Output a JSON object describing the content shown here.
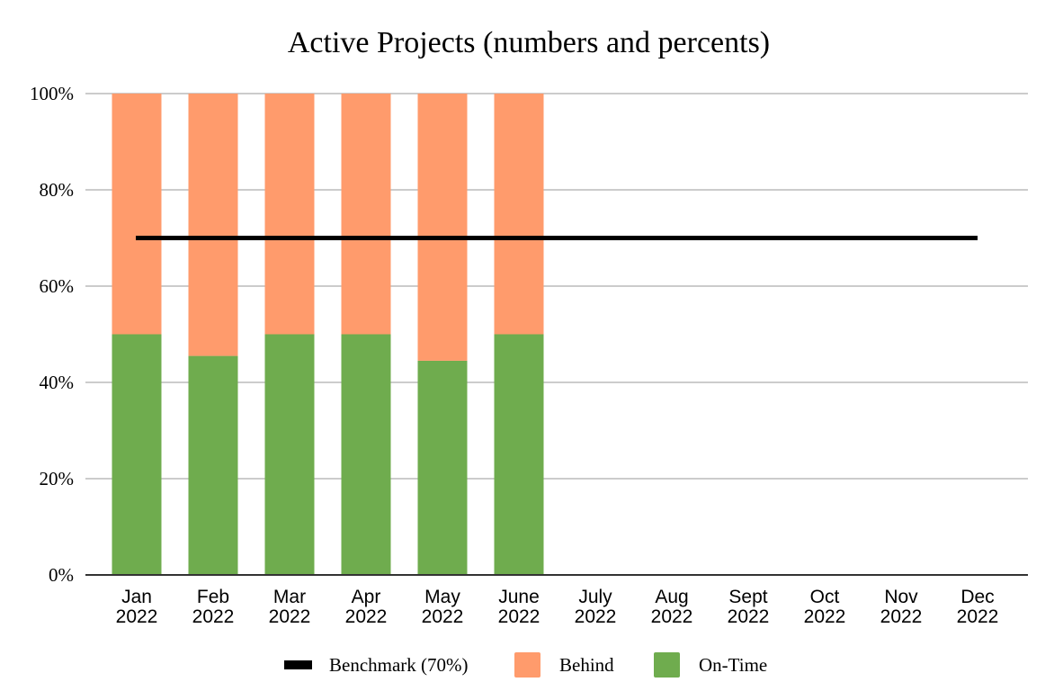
{
  "chart_data": {
    "type": "bar",
    "stacked": true,
    "title": "Active Projects (numbers and percents)",
    "xlabel": "",
    "ylabel": "",
    "ylim": [
      0,
      100
    ],
    "y_ticks": [
      0,
      20,
      40,
      60,
      80,
      100
    ],
    "y_tick_labels": [
      "0%",
      "20%",
      "40%",
      "60%",
      "80%",
      "100%"
    ],
    "grid": true,
    "categories": [
      [
        "Jan",
        "2022"
      ],
      [
        "Feb",
        "2022"
      ],
      [
        "Mar",
        "2022"
      ],
      [
        "Apr",
        "2022"
      ],
      [
        "May",
        "2022"
      ],
      [
        "June",
        "2022"
      ],
      [
        "July",
        "2022"
      ],
      [
        "Aug",
        "2022"
      ],
      [
        "Sept",
        "2022"
      ],
      [
        "Oct",
        "2022"
      ],
      [
        "Nov",
        "2022"
      ],
      [
        "Dec",
        "2022"
      ]
    ],
    "series": [
      {
        "name": "On-Time",
        "type": "bar",
        "color": "#6fac4e",
        "values": [
          50,
          45.5,
          50,
          50,
          44.5,
          50,
          null,
          null,
          null,
          null,
          null,
          null
        ]
      },
      {
        "name": "Behind",
        "type": "bar",
        "color": "#ff9b6c",
        "values": [
          50,
          54.5,
          50,
          50,
          55.5,
          50,
          null,
          null,
          null,
          null,
          null,
          null
        ]
      },
      {
        "name": "Benchmark (70%)",
        "type": "line",
        "color": "#000000",
        "values": [
          70,
          70,
          70,
          70,
          70,
          70,
          70,
          70,
          70,
          70,
          70,
          70
        ]
      }
    ],
    "legend": {
      "position": "bottom",
      "order": [
        "Benchmark (70%)",
        "Behind",
        "On-Time"
      ]
    }
  }
}
